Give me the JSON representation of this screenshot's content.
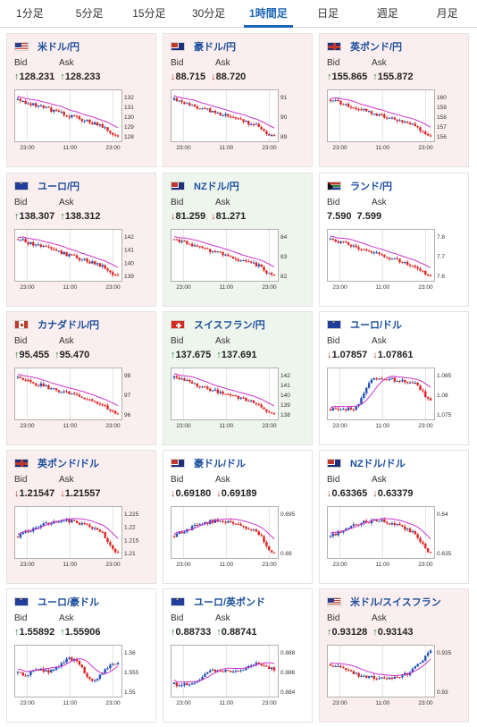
{
  "tabs": [
    {
      "label": "1分足",
      "active": false
    },
    {
      "label": "5分足",
      "active": false
    },
    {
      "label": "15分足",
      "active": false
    },
    {
      "label": "30分足",
      "active": false
    },
    {
      "label": "1時間足",
      "active": true
    },
    {
      "label": "日足",
      "active": false
    },
    {
      "label": "週足",
      "active": false
    },
    {
      "label": "月足",
      "active": false
    }
  ],
  "bid_label": "Bid",
  "ask_label": "Ask",
  "x_ticks": [
    "23:00",
    "11:00",
    "23:00"
  ],
  "colors": {
    "up": "#2e8b3d",
    "down": "#c0392b",
    "title": "#1b4f9c",
    "accent": "#1b65b5",
    "ma": "#cc33cc",
    "bull": "#1f4fb5",
    "bear": "#e02020"
  },
  "cards": [
    {
      "pair": "米ドル/円",
      "flag": "us-flag-icon",
      "dir": "up",
      "bid": "128.231",
      "ask": "128.233",
      "shape": "down",
      "y_ticks": [
        "132",
        "131",
        "130",
        "129",
        "128"
      ]
    },
    {
      "pair": "豪ドル/円",
      "flag": "au-flag-icon",
      "dir": "down",
      "bid": "88.715",
      "ask": "88.720",
      "shape": "down",
      "y_ticks": [
        "91",
        "90",
        "89"
      ]
    },
    {
      "pair": "英ポンド/円",
      "flag": "gb-flag-icon",
      "dir": "up",
      "bid": "155.865",
      "ask": "155.872",
      "shape": "down",
      "y_ticks": [
        "160",
        "159",
        "158",
        "157",
        "156"
      ]
    },
    {
      "pair": "ユーロ/円",
      "flag": "eu-flag-icon",
      "dir": "up",
      "bid": "138.307",
      "ask": "138.312",
      "shape": "down",
      "y_ticks": [
        "142",
        "141",
        "140",
        "139"
      ]
    },
    {
      "pair": "NZドル/円",
      "flag": "nz-flag-icon",
      "dir": "down",
      "bid": "81.259",
      "ask": "81.271",
      "shape": "down",
      "y_ticks": [
        "84",
        "83",
        "82"
      ]
    },
    {
      "pair": "ランド/円",
      "flag": "za-flag-icon",
      "dir": "none",
      "bid": "7.590",
      "ask": "7.599",
      "shape": "down",
      "y_ticks": [
        "7.8",
        "7.7",
        "7.6"
      ]
    },
    {
      "pair": "カナダドル/円",
      "flag": "ca-flag-icon",
      "dir": "up",
      "bid": "95.455",
      "ask": "95.470",
      "shape": "down",
      "y_ticks": [
        "98",
        "97",
        "96"
      ]
    },
    {
      "pair": "スイスフラン/円",
      "flag": "ch-flag-icon",
      "dir": "up",
      "bid": "137.675",
      "ask": "137.691",
      "shape": "down",
      "y_ticks": [
        "142",
        "141",
        "140",
        "139",
        "138"
      ]
    },
    {
      "pair": "ユーロ/ドル",
      "flag": "eu-flag-icon",
      "dir": "down",
      "bid": "1.07857",
      "ask": "1.07861",
      "shape": "rise",
      "y_ticks": [
        "1.085",
        "1.08",
        "1.075"
      ]
    },
    {
      "pair": "英ポンド/ドル",
      "flag": "gb-flag-icon",
      "dir": "down",
      "bid": "1.21547",
      "ask": "1.21557",
      "shape": "hump",
      "y_ticks": [
        "1.225",
        "1.22",
        "1.215",
        "1.21"
      ]
    },
    {
      "pair": "豪ドル/ドル",
      "flag": "au-flag-icon",
      "dir": "down",
      "bid": "0.69180",
      "ask": "0.69189",
      "shape": "hump",
      "y_ticks": [
        "0.695",
        "0.69"
      ]
    },
    {
      "pair": "NZドル/ドル",
      "flag": "nz-flag-icon",
      "dir": "down",
      "bid": "0.63365",
      "ask": "0.63379",
      "shape": "hump",
      "y_ticks": [
        "0.64",
        "0.635"
      ]
    },
    {
      "pair": "ユーロ/豪ドル",
      "flag": "eu-flag-icon",
      "dir": "up",
      "bid": "1.55892",
      "ask": "1.55906",
      "shape": "wave",
      "y_ticks": [
        "1.56",
        "1.555",
        "1.55"
      ]
    },
    {
      "pair": "ユーロ/英ポンド",
      "flag": "eu-flag-icon",
      "dir": "up",
      "bid": "0.88733",
      "ask": "0.88741",
      "shape": "rise2",
      "y_ticks": [
        "0.888",
        "0.886",
        "0.884"
      ]
    },
    {
      "pair": "米ドル/スイスフラン",
      "flag": "us-flag-icon",
      "dir": "up",
      "bid": "0.93128",
      "ask": "0.93143",
      "shape": "vee",
      "y_ticks": [
        "0.935",
        "0.93"
      ]
    }
  ]
}
